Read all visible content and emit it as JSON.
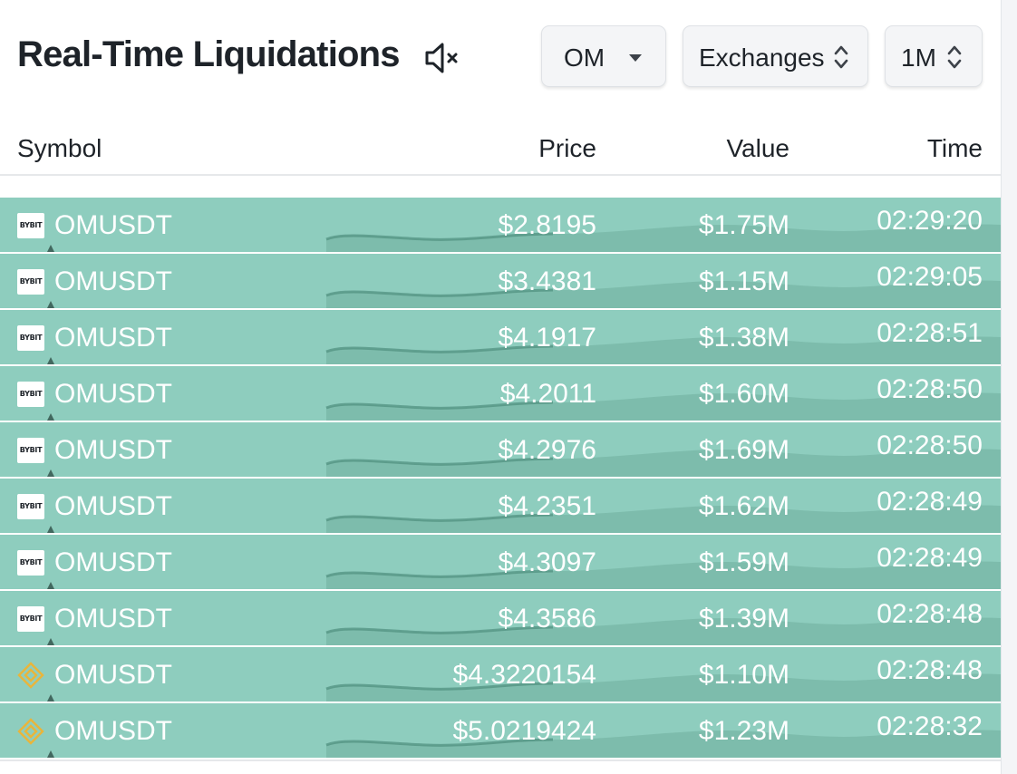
{
  "header": {
    "title": "Real-Time Liquidations",
    "mute_icon": "speaker-muted-icon",
    "symbol_select": {
      "value": "OM",
      "icon": "caret-down-icon"
    },
    "exchange_select": {
      "value": "Exchanges",
      "icon": "up-down-chevron-icon"
    },
    "interval_select": {
      "value": "1M",
      "icon": "up-down-chevron-icon"
    }
  },
  "table": {
    "columns": [
      "Symbol",
      "Price",
      "Value",
      "Time"
    ],
    "row_color": "#8ecdbe",
    "rows": [
      {
        "exchange_icon": "bybit-logo-icon",
        "exchange_label": "BYBIT",
        "symbol": "OMUSDT",
        "price": "$2.8195",
        "value": "$1.75M",
        "time": "02:29:20"
      },
      {
        "exchange_icon": "bybit-logo-icon",
        "exchange_label": "BYBIT",
        "symbol": "OMUSDT",
        "price": "$3.4381",
        "value": "$1.15M",
        "time": "02:29:05"
      },
      {
        "exchange_icon": "bybit-logo-icon",
        "exchange_label": "BYBIT",
        "symbol": "OMUSDT",
        "price": "$4.1917",
        "value": "$1.38M",
        "time": "02:28:51"
      },
      {
        "exchange_icon": "bybit-logo-icon",
        "exchange_label": "BYBIT",
        "symbol": "OMUSDT",
        "price": "$4.2011",
        "value": "$1.60M",
        "time": "02:28:50"
      },
      {
        "exchange_icon": "bybit-logo-icon",
        "exchange_label": "BYBIT",
        "symbol": "OMUSDT",
        "price": "$4.2976",
        "value": "$1.69M",
        "time": "02:28:50"
      },
      {
        "exchange_icon": "bybit-logo-icon",
        "exchange_label": "BYBIT",
        "symbol": "OMUSDT",
        "price": "$4.2351",
        "value": "$1.62M",
        "time": "02:28:49"
      },
      {
        "exchange_icon": "bybit-logo-icon",
        "exchange_label": "BYBIT",
        "symbol": "OMUSDT",
        "price": "$4.3097",
        "value": "$1.59M",
        "time": "02:28:49"
      },
      {
        "exchange_icon": "bybit-logo-icon",
        "exchange_label": "BYBIT",
        "symbol": "OMUSDT",
        "price": "$4.3586",
        "value": "$1.39M",
        "time": "02:28:48"
      },
      {
        "exchange_icon": "binance-logo-icon",
        "exchange_label": "",
        "symbol": "OMUSDT",
        "price": "$4.3220154",
        "value": "$1.10M",
        "time": "02:28:48"
      },
      {
        "exchange_icon": "binance-logo-icon",
        "exchange_label": "",
        "symbol": "OMUSDT",
        "price": "$5.0219424",
        "value": "$1.23M",
        "time": "02:28:32"
      }
    ]
  }
}
